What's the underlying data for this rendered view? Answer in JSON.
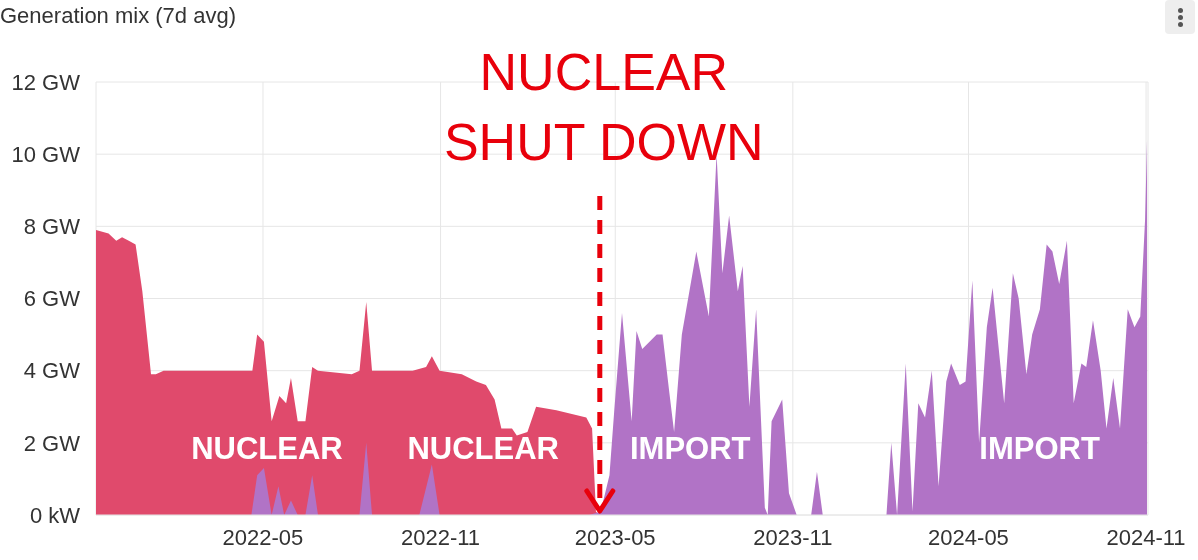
{
  "chart_data": {
    "type": "area",
    "title": "Generation mix (7d avg)",
    "xlim": [
      "2021-11-09",
      "2024-11-03"
    ],
    "xticks": [
      "2022-05",
      "2022-11",
      "2023-05",
      "2023-11",
      "2024-05",
      "2024-11"
    ],
    "ylim": [
      0,
      12
    ],
    "yticks": [
      {
        "value": 0,
        "label": "0 kW"
      },
      {
        "value": 2,
        "label": "2 GW"
      },
      {
        "value": 4,
        "label": "4 GW"
      },
      {
        "value": 6,
        "label": "6 GW"
      },
      {
        "value": 8,
        "label": "8 GW"
      },
      {
        "value": 10,
        "label": "10 GW"
      },
      {
        "value": 12,
        "label": "12 GW"
      }
    ],
    "grid": true,
    "series": [
      {
        "name": "NUCLEAR",
        "color": "#e04a6c",
        "x": [
          "2021-11-09",
          "2021-11-22",
          "2021-11-30",
          "2021-12-06",
          "2021-12-13",
          "2021-12-20",
          "2021-12-27",
          "2022-01-05",
          "2022-01-10",
          "2022-01-18",
          "2022-03-03",
          "2022-04-20",
          "2022-04-25",
          "2022-05-02",
          "2022-05-10",
          "2022-05-18",
          "2022-05-25",
          "2022-05-30",
          "2022-06-06",
          "2022-06-14",
          "2022-06-21",
          "2022-06-27",
          "2022-08-01",
          "2022-08-09",
          "2022-08-16",
          "2022-08-22",
          "2022-09-19",
          "2022-10-03",
          "2022-10-17",
          "2022-10-23",
          "2022-10-31",
          "2022-11-23",
          "2022-12-08",
          "2022-12-18",
          "2022-12-27",
          "2023-01-03",
          "2023-01-14",
          "2023-01-19",
          "2023-01-30",
          "2023-02-08",
          "2023-03-01",
          "2023-04-01",
          "2023-04-07",
          "2023-04-11",
          "2023-04-14"
        ],
        "values": [
          7.9,
          7.8,
          7.6,
          7.7,
          7.6,
          7.5,
          6.2,
          3.9,
          3.9,
          4.0,
          4.0,
          4.0,
          5.0,
          4.8,
          2.6,
          3.3,
          3.1,
          3.8,
          2.6,
          2.6,
          4.1,
          4.0,
          3.9,
          4.0,
          5.9,
          4.0,
          4.0,
          4.0,
          4.1,
          4.4,
          4.0,
          3.9,
          3.7,
          3.6,
          3.2,
          2.4,
          2.4,
          2.2,
          2.3,
          3.0,
          2.9,
          2.7,
          2.4,
          0.1,
          0
        ]
      },
      {
        "name": "IMPORT",
        "color": "#b173c6",
        "x": [
          "2022-04-19",
          "2022-04-25",
          "2022-05-02",
          "2022-05-10",
          "2022-05-17",
          "2022-05-23",
          "2022-05-30",
          "2022-06-06",
          "2022-06-14",
          "2022-06-21",
          "2022-06-27",
          "2022-08-09",
          "2022-08-16",
          "2022-08-22",
          "2022-10-10",
          "2022-10-23",
          "2022-10-31",
          "2023-04-04",
          "2023-04-16",
          "2023-04-25",
          "2023-04-30",
          "2023-05-08",
          "2023-05-18",
          "2023-05-23",
          "2023-05-29",
          "2023-06-13",
          "2023-06-19",
          "2023-06-26",
          "2023-07-01",
          "2023-07-09",
          "2023-07-24",
          "2023-08-06",
          "2023-08-14",
          "2023-08-20",
          "2023-08-27",
          "2023-09-05",
          "2023-09-10",
          "2023-09-17",
          "2023-09-24",
          "2023-10-03",
          "2023-10-06",
          "2023-10-10",
          "2023-10-21",
          "2023-10-28",
          "2023-11-05",
          "2023-11-20",
          "2023-11-26",
          "2023-12-02",
          "2024-02-06",
          "2024-02-11",
          "2024-02-17",
          "2024-02-26",
          "2024-03-04",
          "2024-03-10",
          "2024-03-17",
          "2024-03-24",
          "2024-03-31",
          "2024-04-08",
          "2024-04-13",
          "2024-04-22",
          "2024-04-28",
          "2024-05-05",
          "2024-05-12",
          "2024-05-20",
          "2024-05-26",
          "2024-06-07",
          "2024-06-16",
          "2024-06-22",
          "2024-06-30",
          "2024-07-06",
          "2024-07-14",
          "2024-07-21",
          "2024-07-27",
          "2024-08-03",
          "2024-08-11",
          "2024-08-18",
          "2024-08-26",
          "2024-08-31",
          "2024-09-07",
          "2024-09-15",
          "2024-09-21",
          "2024-09-28",
          "2024-10-05",
          "2024-10-13",
          "2024-10-20",
          "2024-10-26",
          "2024-10-31",
          "2024-11-02"
        ],
        "values": [
          0,
          1.1,
          1.3,
          0,
          0.8,
          0,
          0.4,
          0,
          0,
          1.1,
          0,
          0,
          2.0,
          0,
          0,
          1.4,
          0,
          0,
          0.1,
          1.1,
          2.9,
          5.6,
          2.6,
          5.1,
          4.6,
          5.0,
          5.0,
          3.4,
          2.3,
          5.0,
          7.3,
          5.5,
          10.0,
          6.7,
          8.3,
          6.2,
          6.9,
          3.0,
          5.7,
          0.2,
          0,
          2.6,
          3.2,
          0.6,
          0,
          0,
          1.2,
          0,
          0,
          2.0,
          0,
          4.2,
          0.1,
          3.1,
          2.7,
          4.0,
          0.8,
          3.7,
          4.2,
          3.6,
          3.7,
          6.5,
          2.0,
          5.2,
          6.3,
          3.1,
          6.7,
          6.0,
          3.9,
          5.0,
          5.7,
          7.5,
          7.3,
          6.4,
          7.6,
          3.1,
          4.2,
          4.1,
          5.4,
          4.0,
          2.4,
          3.8,
          2.4,
          5.7,
          5.2,
          5.5,
          8.2,
          10.4
        ]
      }
    ],
    "ref_lines": [
      {
        "axis": "x",
        "value": "2023-04-15",
        "label": "NUCLEAR\nSHUT DOWN",
        "color": "#e8000b",
        "line_style": "dashed"
      }
    ]
  }
}
